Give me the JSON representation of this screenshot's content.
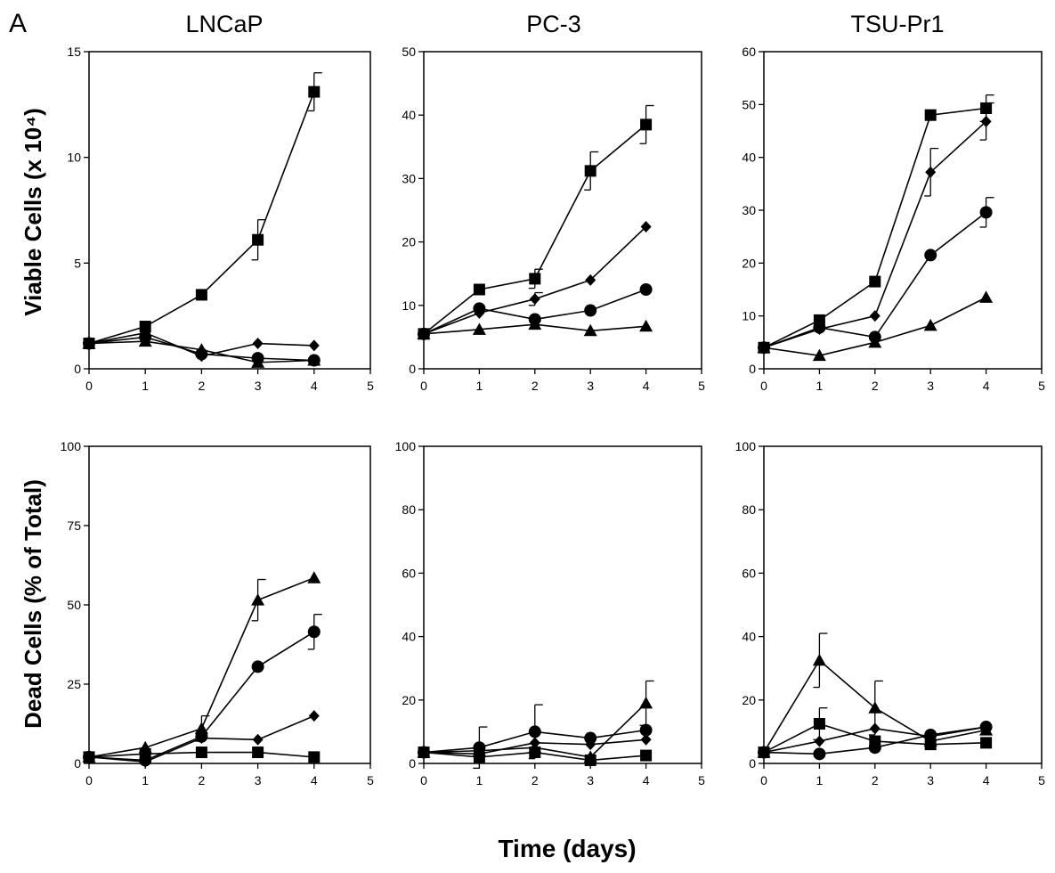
{
  "figure": {
    "panel_letter": "A",
    "column_titles": [
      "LNCaP",
      "PC-3",
      "TSU-Pr1"
    ],
    "row_labels": [
      "Viable Cells (x 10⁴)",
      "Dead Cells (% of Total)"
    ],
    "x_title": "Time (days)"
  },
  "chart_data": [
    {
      "type": "line",
      "title": "LNCaP",
      "ylabel": "Viable Cells (x 10⁴)",
      "xlabel": "",
      "xlim": [
        0,
        5
      ],
      "ylim": [
        0,
        15
      ],
      "xticks": [
        0,
        1,
        2,
        3,
        4,
        5
      ],
      "yticks": [
        0,
        5,
        10,
        15
      ],
      "x": [
        0,
        1,
        2,
        3,
        4
      ],
      "series": [
        {
          "marker": "square",
          "values": [
            1.2,
            2.0,
            3.5,
            6.1,
            13.1
          ],
          "err": [
            0,
            0,
            0,
            0.95,
            0.9
          ]
        },
        {
          "marker": "diamond",
          "values": [
            1.2,
            1.7,
            0.6,
            1.2,
            1.1
          ],
          "err": [
            0,
            0,
            0,
            0,
            0
          ]
        },
        {
          "marker": "circle",
          "values": [
            1.2,
            1.5,
            0.7,
            0.5,
            0.4
          ],
          "err": [
            0,
            0,
            0,
            0,
            0
          ]
        },
        {
          "marker": "triangle",
          "values": [
            1.2,
            1.3,
            0.9,
            0.3,
            0.4
          ],
          "err": [
            0,
            0,
            0,
            0,
            0
          ]
        }
      ]
    },
    {
      "type": "line",
      "title": "PC-3",
      "ylabel": "",
      "xlabel": "",
      "xlim": [
        0,
        5
      ],
      "ylim": [
        0,
        50
      ],
      "xticks": [
        0,
        1,
        2,
        3,
        4,
        5
      ],
      "yticks": [
        0,
        10,
        20,
        30,
        40,
        50
      ],
      "x": [
        0,
        1,
        2,
        3,
        4
      ],
      "series": [
        {
          "marker": "square",
          "values": [
            5.5,
            12.5,
            14.2,
            31.2,
            38.5
          ],
          "err": [
            0,
            0,
            1.5,
            3.0,
            3.0
          ]
        },
        {
          "marker": "diamond",
          "values": [
            5.5,
            8.8,
            11.0,
            14.0,
            22.4
          ],
          "err": [
            0,
            0,
            1.0,
            0,
            0
          ]
        },
        {
          "marker": "circle",
          "values": [
            5.5,
            9.5,
            7.8,
            9.2,
            12.5
          ],
          "err": [
            0,
            0,
            0,
            0,
            0
          ]
        },
        {
          "marker": "triangle",
          "values": [
            5.5,
            6.2,
            7.0,
            6.0,
            6.7
          ],
          "err": [
            0,
            0,
            0,
            0,
            0
          ]
        }
      ]
    },
    {
      "type": "line",
      "title": "TSU-Pr1",
      "ylabel": "",
      "xlabel": "",
      "xlim": [
        0,
        5
      ],
      "ylim": [
        0,
        60
      ],
      "xticks": [
        0,
        1,
        2,
        3,
        4,
        5
      ],
      "yticks": [
        0,
        10,
        20,
        30,
        40,
        50,
        60
      ],
      "x": [
        0,
        1,
        2,
        3,
        4
      ],
      "series": [
        {
          "marker": "square",
          "values": [
            4.0,
            9.2,
            16.5,
            48.0,
            49.3
          ],
          "err": [
            0,
            0,
            0,
            0,
            2.5
          ]
        },
        {
          "marker": "diamond",
          "values": [
            4.0,
            7.5,
            10.0,
            37.2,
            46.8
          ],
          "err": [
            0,
            0,
            0,
            4.5,
            3.5
          ]
        },
        {
          "marker": "circle",
          "values": [
            4.0,
            7.8,
            6.0,
            21.5,
            29.6
          ],
          "err": [
            0,
            0,
            0,
            0,
            2.8
          ]
        },
        {
          "marker": "triangle",
          "values": [
            4.0,
            2.5,
            5.0,
            8.2,
            13.5
          ],
          "err": [
            0,
            0,
            0,
            0,
            0
          ]
        }
      ]
    },
    {
      "type": "line",
      "title": "",
      "ylabel": "Dead Cells (% of Total)",
      "xlabel": "Time (days)",
      "xlim": [
        0,
        5
      ],
      "ylim": [
        0,
        100
      ],
      "xticks": [
        0,
        1,
        2,
        3,
        4,
        5
      ],
      "yticks": [
        0,
        25,
        50,
        75,
        100
      ],
      "x": [
        0,
        1,
        2,
        3,
        4
      ],
      "series": [
        {
          "marker": "triangle",
          "values": [
            2.0,
            5.0,
            11.0,
            51.5,
            58.5
          ],
          "err": [
            0,
            0,
            4.0,
            6.5,
            0
          ]
        },
        {
          "marker": "circle",
          "values": [
            2.0,
            1.0,
            8.5,
            30.5,
            41.5
          ],
          "err": [
            0,
            0,
            0,
            0,
            5.5
          ]
        },
        {
          "marker": "diamond",
          "values": [
            2.0,
            0.5,
            8.0,
            7.5,
            15.0
          ],
          "err": [
            0,
            0,
            0,
            0,
            0
          ]
        },
        {
          "marker": "square",
          "values": [
            2.0,
            3.0,
            3.5,
            3.5,
            2.0
          ],
          "err": [
            0,
            0,
            0,
            0,
            0
          ]
        }
      ]
    },
    {
      "type": "line",
      "title": "",
      "ylabel": "",
      "xlabel": "Time (days)",
      "xlim": [
        0,
        5
      ],
      "ylim": [
        0,
        100
      ],
      "xticks": [
        0,
        1,
        2,
        3,
        4,
        5
      ],
      "yticks": [
        0,
        20,
        40,
        60,
        80,
        100
      ],
      "x": [
        0,
        1,
        2,
        3,
        4
      ],
      "series": [
        {
          "marker": "triangle",
          "values": [
            3.5,
            4.0,
            5.0,
            2.0,
            19.0
          ],
          "err": [
            0,
            0,
            0,
            0,
            7.0
          ]
        },
        {
          "marker": "circle",
          "values": [
            3.5,
            5.0,
            10.0,
            8.0,
            10.5
          ],
          "err": [
            0,
            6.5,
            8.5,
            0,
            0
          ]
        },
        {
          "marker": "diamond",
          "values": [
            3.5,
            3.0,
            6.5,
            6.0,
            7.5
          ],
          "err": [
            0,
            0,
            0,
            0,
            0
          ]
        },
        {
          "marker": "square",
          "values": [
            3.5,
            2.0,
            3.5,
            1.0,
            2.5
          ],
          "err": [
            0,
            0,
            0,
            0,
            0
          ]
        }
      ]
    },
    {
      "type": "line",
      "title": "",
      "ylabel": "",
      "xlabel": "Time (days)",
      "xlim": [
        0,
        5
      ],
      "ylim": [
        0,
        100
      ],
      "xticks": [
        0,
        1,
        2,
        3,
        4,
        5
      ],
      "yticks": [
        0,
        20,
        40,
        60,
        80,
        100
      ],
      "x": [
        0,
        1,
        2,
        3,
        4
      ],
      "series": [
        {
          "marker": "triangle",
          "values": [
            3.5,
            32.5,
            17.5,
            7.0,
            10.5
          ],
          "err": [
            0,
            8.5,
            8.5,
            0,
            0
          ]
        },
        {
          "marker": "square",
          "values": [
            3.5,
            12.5,
            7.0,
            6.0,
            6.5
          ],
          "err": [
            0,
            5.0,
            0,
            0,
            0
          ]
        },
        {
          "marker": "diamond",
          "values": [
            3.5,
            7.0,
            11.0,
            8.5,
            11.5
          ],
          "err": [
            0,
            0,
            0,
            0,
            0
          ]
        },
        {
          "marker": "circle",
          "values": [
            3.5,
            3.0,
            5.0,
            9.0,
            11.5
          ],
          "err": [
            0,
            0,
            0,
            0,
            0
          ]
        }
      ]
    }
  ]
}
